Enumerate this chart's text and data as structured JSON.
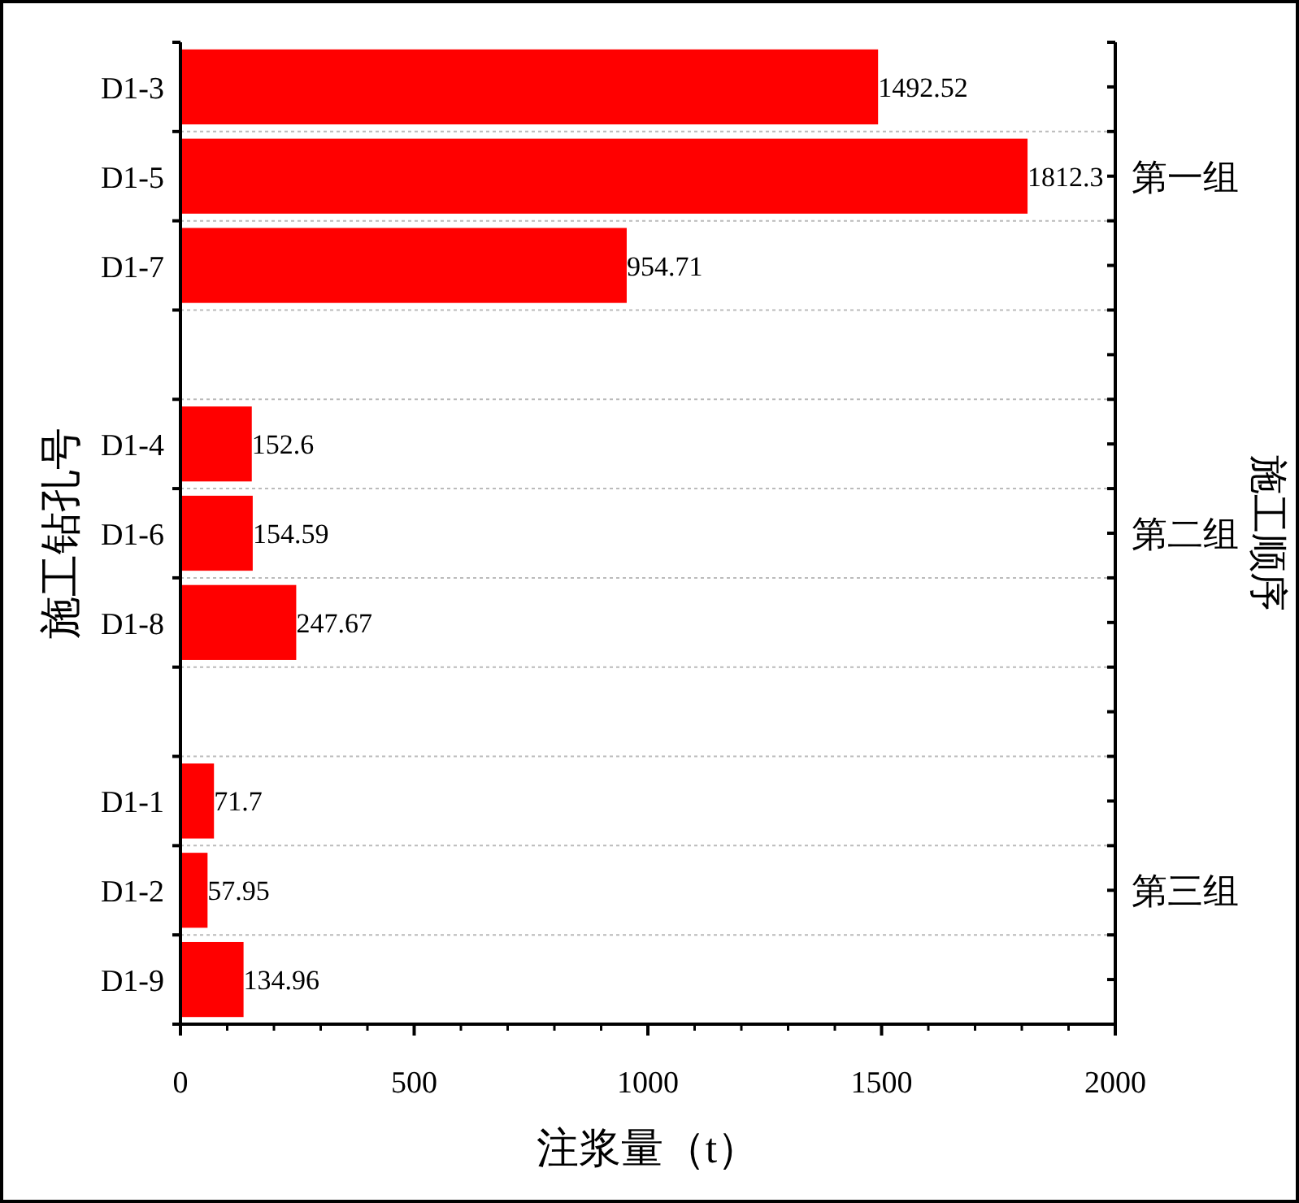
{
  "chart_data": {
    "type": "bar",
    "orientation": "horizontal",
    "categories": [
      "D1-3",
      "D1-5",
      "D1-7",
      null,
      "D1-4",
      "D1-6",
      "D1-8",
      null,
      "D1-1",
      "D1-2",
      "D1-9"
    ],
    "values": [
      1492.52,
      1812.3,
      954.71,
      null,
      152.6,
      154.59,
      247.67,
      null,
      71.7,
      57.95,
      134.96
    ],
    "color": "#ff0000",
    "xlabel": "注浆量（t）",
    "ylabel": "施工钻孔号",
    "y2label": "施工顺序",
    "annotations": [
      "第一组",
      "第二组",
      "第三组"
    ],
    "xlim": [
      0,
      2000
    ],
    "xticks": [
      0,
      500,
      1000,
      1500,
      2000
    ],
    "grid": "y",
    "data_labels": true
  }
}
